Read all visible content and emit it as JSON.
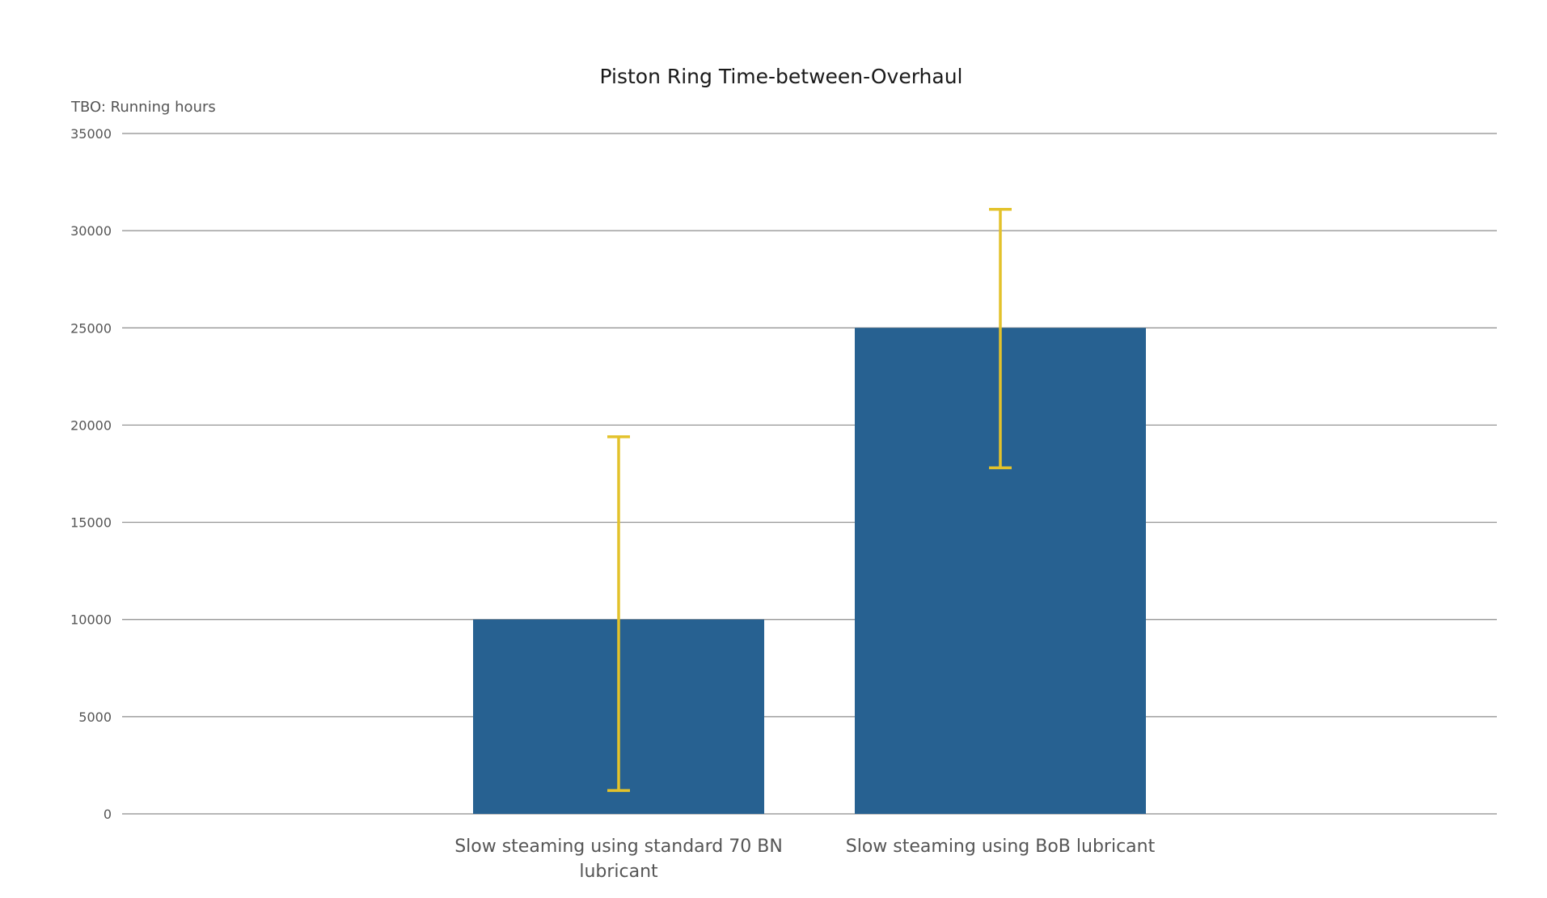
{
  "chart_data": {
    "type": "bar",
    "title": "Piston Ring Time-between-Overhaul",
    "ylabel": "TBO: Running hours",
    "xlabel": "",
    "ylim": [
      0,
      35000
    ],
    "yticks": [
      "0",
      "5000",
      "10000",
      "15000",
      "20000",
      "25000",
      "30000",
      "35000"
    ],
    "categories": [
      [
        "Slow steaming using standard 70 BN",
        "lubricant"
      ],
      [
        "Slow steaming using BoB lubricant"
      ]
    ],
    "values": [
      10000,
      25000
    ],
    "error_bars": [
      {
        "low": 1200,
        "high": 19400
      },
      {
        "low": 17800,
        "high": 31100
      }
    ],
    "grid": true,
    "colors": {
      "bar": "#276191",
      "error_bar": "#e3c22b",
      "grid": "#8c8c8c"
    }
  }
}
